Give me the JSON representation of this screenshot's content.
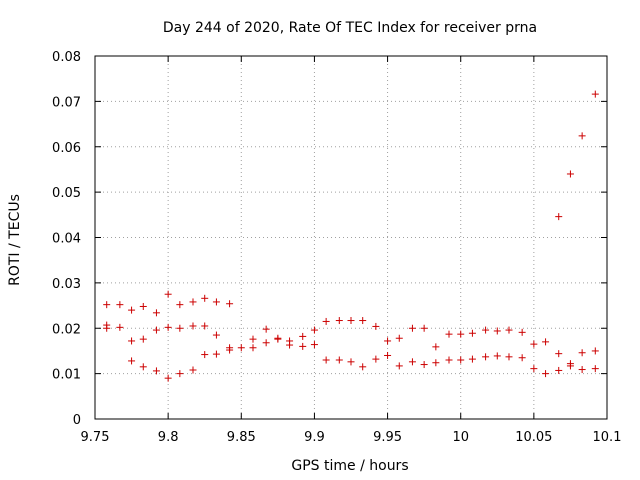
{
  "chart_data": {
    "type": "scatter",
    "title": "Day 244 of 2020, Rate Of TEC Index for receiver prna",
    "xlabel": "GPS time / hours",
    "ylabel": "ROTI / TECUs",
    "xlim": [
      9.75,
      10.1
    ],
    "ylim": [
      0,
      0.08
    ],
    "x_ticks": [
      "9.75",
      "9.8",
      "9.85",
      "9.9",
      "9.95",
      "10",
      "10.05",
      "10.1"
    ],
    "x_tick_values": [
      9.75,
      9.8,
      9.85,
      9.9,
      9.95,
      10.0,
      10.05,
      10.1
    ],
    "y_ticks": [
      "0",
      "0.01",
      "0.02",
      "0.03",
      "0.04",
      "0.05",
      "0.06",
      "0.07",
      "0.08"
    ],
    "y_tick_values": [
      0,
      0.01,
      0.02,
      0.03,
      0.04,
      0.05,
      0.06,
      0.07,
      0.08
    ],
    "grid": true,
    "marker": "+",
    "marker_color": "#cc0000",
    "points": [
      [
        9.758,
        0.0252
      ],
      [
        9.758,
        0.0207
      ],
      [
        9.758,
        0.02
      ],
      [
        9.767,
        0.0252
      ],
      [
        9.767,
        0.0202
      ],
      [
        9.775,
        0.024
      ],
      [
        9.775,
        0.0172
      ],
      [
        9.775,
        0.0128
      ],
      [
        9.783,
        0.0248
      ],
      [
        9.783,
        0.0176
      ],
      [
        9.783,
        0.0115
      ],
      [
        9.792,
        0.0234
      ],
      [
        9.792,
        0.0196
      ],
      [
        9.792,
        0.0106
      ],
      [
        9.8,
        0.0275
      ],
      [
        9.8,
        0.0202
      ],
      [
        9.8,
        0.009
      ],
      [
        9.808,
        0.0252
      ],
      [
        9.808,
        0.02
      ],
      [
        9.808,
        0.01
      ],
      [
        9.817,
        0.0258
      ],
      [
        9.817,
        0.0205
      ],
      [
        9.817,
        0.0108
      ],
      [
        9.825,
        0.0266
      ],
      [
        9.825,
        0.0205
      ],
      [
        9.825,
        0.0142
      ],
      [
        9.833,
        0.0258
      ],
      [
        9.833,
        0.0185
      ],
      [
        9.833,
        0.0143
      ],
      [
        9.842,
        0.0254
      ],
      [
        9.842,
        0.0157
      ],
      [
        9.842,
        0.0152
      ],
      [
        9.85,
        0.0157
      ],
      [
        9.858,
        0.0176
      ],
      [
        9.858,
        0.0157
      ],
      [
        9.867,
        0.0198
      ],
      [
        9.867,
        0.0168
      ],
      [
        9.875,
        0.0178
      ],
      [
        9.875,
        0.0176
      ],
      [
        9.883,
        0.0172
      ],
      [
        9.883,
        0.0163
      ],
      [
        9.892,
        0.0182
      ],
      [
        9.892,
        0.016
      ],
      [
        9.9,
        0.0196
      ],
      [
        9.9,
        0.0164
      ],
      [
        9.908,
        0.0215
      ],
      [
        9.908,
        0.013
      ],
      [
        9.917,
        0.0217
      ],
      [
        9.917,
        0.013
      ],
      [
        9.925,
        0.0217
      ],
      [
        9.925,
        0.0126
      ],
      [
        9.933,
        0.0217
      ],
      [
        9.933,
        0.0115
      ],
      [
        9.942,
        0.0204
      ],
      [
        9.942,
        0.0132
      ],
      [
        9.95,
        0.0172
      ],
      [
        9.95,
        0.014
      ],
      [
        9.958,
        0.0178
      ],
      [
        9.958,
        0.0117
      ],
      [
        9.967,
        0.02
      ],
      [
        9.967,
        0.0126
      ],
      [
        9.975,
        0.02
      ],
      [
        9.975,
        0.012
      ],
      [
        9.983,
        0.0159
      ],
      [
        9.983,
        0.0124
      ],
      [
        9.992,
        0.0187
      ],
      [
        9.992,
        0.013
      ],
      [
        10.0,
        0.0187
      ],
      [
        10.0,
        0.013
      ],
      [
        10.008,
        0.0189
      ],
      [
        10.008,
        0.0132
      ],
      [
        10.017,
        0.0196
      ],
      [
        10.017,
        0.0137
      ],
      [
        10.025,
        0.0194
      ],
      [
        10.025,
        0.0139
      ],
      [
        10.033,
        0.0196
      ],
      [
        10.033,
        0.0137
      ],
      [
        10.042,
        0.0191
      ],
      [
        10.042,
        0.0135
      ],
      [
        10.05,
        0.0165
      ],
      [
        10.05,
        0.0111
      ],
      [
        10.058,
        0.017
      ],
      [
        10.058,
        0.01
      ],
      [
        10.067,
        0.0446
      ],
      [
        10.067,
        0.0144
      ],
      [
        10.067,
        0.0107
      ],
      [
        10.075,
        0.054
      ],
      [
        10.075,
        0.0122
      ],
      [
        10.075,
        0.0117
      ],
      [
        10.083,
        0.0624
      ],
      [
        10.083,
        0.0146
      ],
      [
        10.083,
        0.0109
      ],
      [
        10.092,
        0.0716
      ],
      [
        10.092,
        0.015
      ],
      [
        10.092,
        0.0111
      ]
    ]
  }
}
